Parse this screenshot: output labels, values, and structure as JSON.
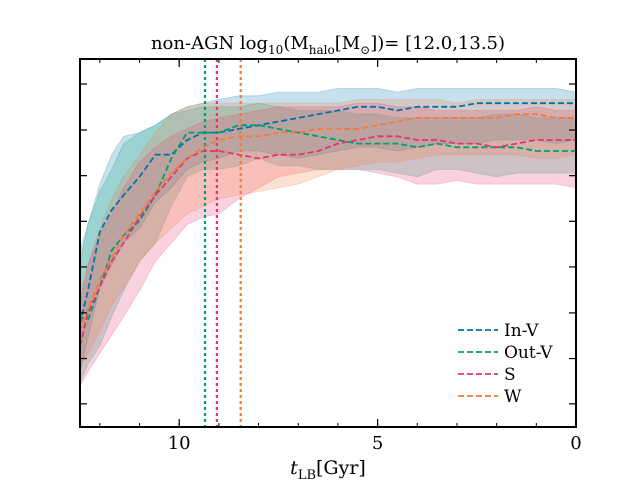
{
  "chart_data": {
    "type": "line",
    "title": {
      "prefix": "non-AGN log",
      "sub1": "10",
      "mid1": "(M",
      "sub2": "halo",
      "mid2": "[M",
      "sub3": "⊙",
      "suffix": "])= [12.0,13.5)"
    },
    "xlabel": {
      "main": "t",
      "sub": "LB",
      "unit": "[Gyr]"
    },
    "ylabel": "",
    "xlim": [
      12.5,
      0
    ],
    "ylim": [
      0,
      1
    ],
    "x_ticks": [
      10,
      5,
      0
    ],
    "x_tick_labels": [
      "10",
      "5",
      "0"
    ],
    "x_minor_step": 1,
    "y_ticks": [
      0.063,
      0.186,
      0.31,
      0.435,
      0.559,
      0.683,
      0.807,
      0.932
    ],
    "x": [
      12.5,
      12.3,
      12.0,
      11.7,
      11.4,
      11.0,
      10.6,
      10.2,
      9.8,
      9.4,
      9.0,
      8.5,
      8.0,
      7.5,
      7.0,
      6.5,
      6.0,
      5.5,
      5.0,
      4.5,
      4.0,
      3.5,
      3.0,
      2.5,
      2.0,
      1.5,
      1.0,
      0.5,
      0.0
    ],
    "series": [
      {
        "name": "In-V",
        "color": "#0072B2",
        "values": [
          0.28,
          0.37,
          0.53,
          0.59,
          0.63,
          0.68,
          0.74,
          0.74,
          0.78,
          0.8,
          0.8,
          0.81,
          0.82,
          0.83,
          0.84,
          0.85,
          0.86,
          0.87,
          0.87,
          0.86,
          0.87,
          0.87,
          0.87,
          0.88,
          0.88,
          0.88,
          0.88,
          0.88,
          0.88
        ],
        "lower": [
          0.15,
          0.24,
          0.38,
          0.44,
          0.5,
          0.54,
          0.61,
          0.65,
          0.7,
          0.72,
          0.73,
          0.75,
          0.75,
          0.74,
          0.73,
          0.74,
          0.75,
          0.76,
          0.76,
          0.75,
          0.76,
          0.77,
          0.77,
          0.77,
          0.78,
          0.78,
          0.78,
          0.77,
          0.78
        ],
        "upper": [
          0.45,
          0.55,
          0.66,
          0.74,
          0.79,
          0.8,
          0.82,
          0.85,
          0.87,
          0.88,
          0.89,
          0.9,
          0.9,
          0.91,
          0.91,
          0.91,
          0.92,
          0.92,
          0.92,
          0.91,
          0.92,
          0.92,
          0.92,
          0.92,
          0.92,
          0.92,
          0.92,
          0.92,
          0.91
        ]
      },
      {
        "name": "Out-V",
        "color": "#009E73",
        "values": [
          0.3,
          0.29,
          0.38,
          0.48,
          0.52,
          0.56,
          0.63,
          0.73,
          0.8,
          0.8,
          0.8,
          0.82,
          0.82,
          0.81,
          0.8,
          0.79,
          0.78,
          0.77,
          0.77,
          0.77,
          0.76,
          0.77,
          0.76,
          0.76,
          0.76,
          0.76,
          0.75,
          0.75,
          0.75
        ],
        "lower": [
          0.12,
          0.17,
          0.22,
          0.3,
          0.37,
          0.45,
          0.5,
          0.6,
          0.68,
          0.7,
          0.7,
          0.71,
          0.73,
          0.71,
          0.71,
          0.7,
          0.7,
          0.7,
          0.7,
          0.69,
          0.68,
          0.7,
          0.7,
          0.69,
          0.68,
          0.69,
          0.69,
          0.69,
          0.69
        ],
        "upper": [
          0.48,
          0.55,
          0.64,
          0.7,
          0.77,
          0.8,
          0.82,
          0.85,
          0.86,
          0.87,
          0.87,
          0.87,
          0.88,
          0.87,
          0.86,
          0.86,
          0.86,
          0.85,
          0.85,
          0.84,
          0.84,
          0.84,
          0.84,
          0.84,
          0.85,
          0.85,
          0.84,
          0.84,
          0.84
        ]
      },
      {
        "name": "S",
        "color": "#E7336F",
        "values": [
          0.22,
          0.31,
          0.38,
          0.45,
          0.5,
          0.57,
          0.63,
          0.68,
          0.73,
          0.75,
          0.75,
          0.74,
          0.73,
          0.74,
          0.74,
          0.75,
          0.77,
          0.78,
          0.79,
          0.79,
          0.78,
          0.78,
          0.77,
          0.77,
          0.76,
          0.77,
          0.78,
          0.78,
          0.78
        ],
        "lower": [
          0.11,
          0.15,
          0.2,
          0.25,
          0.3,
          0.37,
          0.45,
          0.5,
          0.55,
          0.57,
          0.58,
          0.62,
          0.65,
          0.68,
          0.69,
          0.7,
          0.7,
          0.7,
          0.69,
          0.68,
          0.66,
          0.66,
          0.67,
          0.66,
          0.66,
          0.66,
          0.66,
          0.66,
          0.65
        ],
        "upper": [
          0.34,
          0.44,
          0.52,
          0.58,
          0.65,
          0.72,
          0.76,
          0.79,
          0.81,
          0.83,
          0.84,
          0.85,
          0.86,
          0.87,
          0.87,
          0.87,
          0.87,
          0.88,
          0.88,
          0.87,
          0.87,
          0.86,
          0.86,
          0.86,
          0.86,
          0.86,
          0.87,
          0.86,
          0.86
        ]
      },
      {
        "name": "W",
        "color": "#F5793A",
        "values": [
          0.26,
          0.32,
          0.4,
          0.46,
          0.52,
          0.58,
          0.64,
          0.69,
          0.73,
          0.76,
          0.78,
          0.79,
          0.79,
          0.8,
          0.8,
          0.81,
          0.81,
          0.81,
          0.82,
          0.83,
          0.84,
          0.84,
          0.84,
          0.84,
          0.84,
          0.85,
          0.85,
          0.84,
          0.84
        ],
        "lower": [
          0.16,
          0.2,
          0.26,
          0.33,
          0.38,
          0.45,
          0.5,
          0.54,
          0.58,
          0.6,
          0.62,
          0.63,
          0.64,
          0.65,
          0.66,
          0.68,
          0.7,
          0.71,
          0.72,
          0.72,
          0.73,
          0.74,
          0.74,
          0.74,
          0.74,
          0.74,
          0.73,
          0.73,
          0.74
        ],
        "upper": [
          0.36,
          0.44,
          0.54,
          0.62,
          0.68,
          0.74,
          0.8,
          0.85,
          0.87,
          0.88,
          0.88,
          0.88,
          0.88,
          0.88,
          0.88,
          0.88,
          0.88,
          0.89,
          0.89,
          0.89,
          0.89,
          0.89,
          0.88,
          0.89,
          0.89,
          0.89,
          0.89,
          0.89,
          0.89
        ]
      }
    ],
    "vlines": [
      {
        "x": 9.35,
        "color": "#009E73"
      },
      {
        "x": 9.05,
        "color": "#E7336F"
      },
      {
        "x": 8.45,
        "color": "#F5793A"
      }
    ],
    "legend": {
      "position": "lower right",
      "entries": [
        "In-V",
        "Out-V",
        "S",
        "W"
      ]
    },
    "grid": false
  }
}
